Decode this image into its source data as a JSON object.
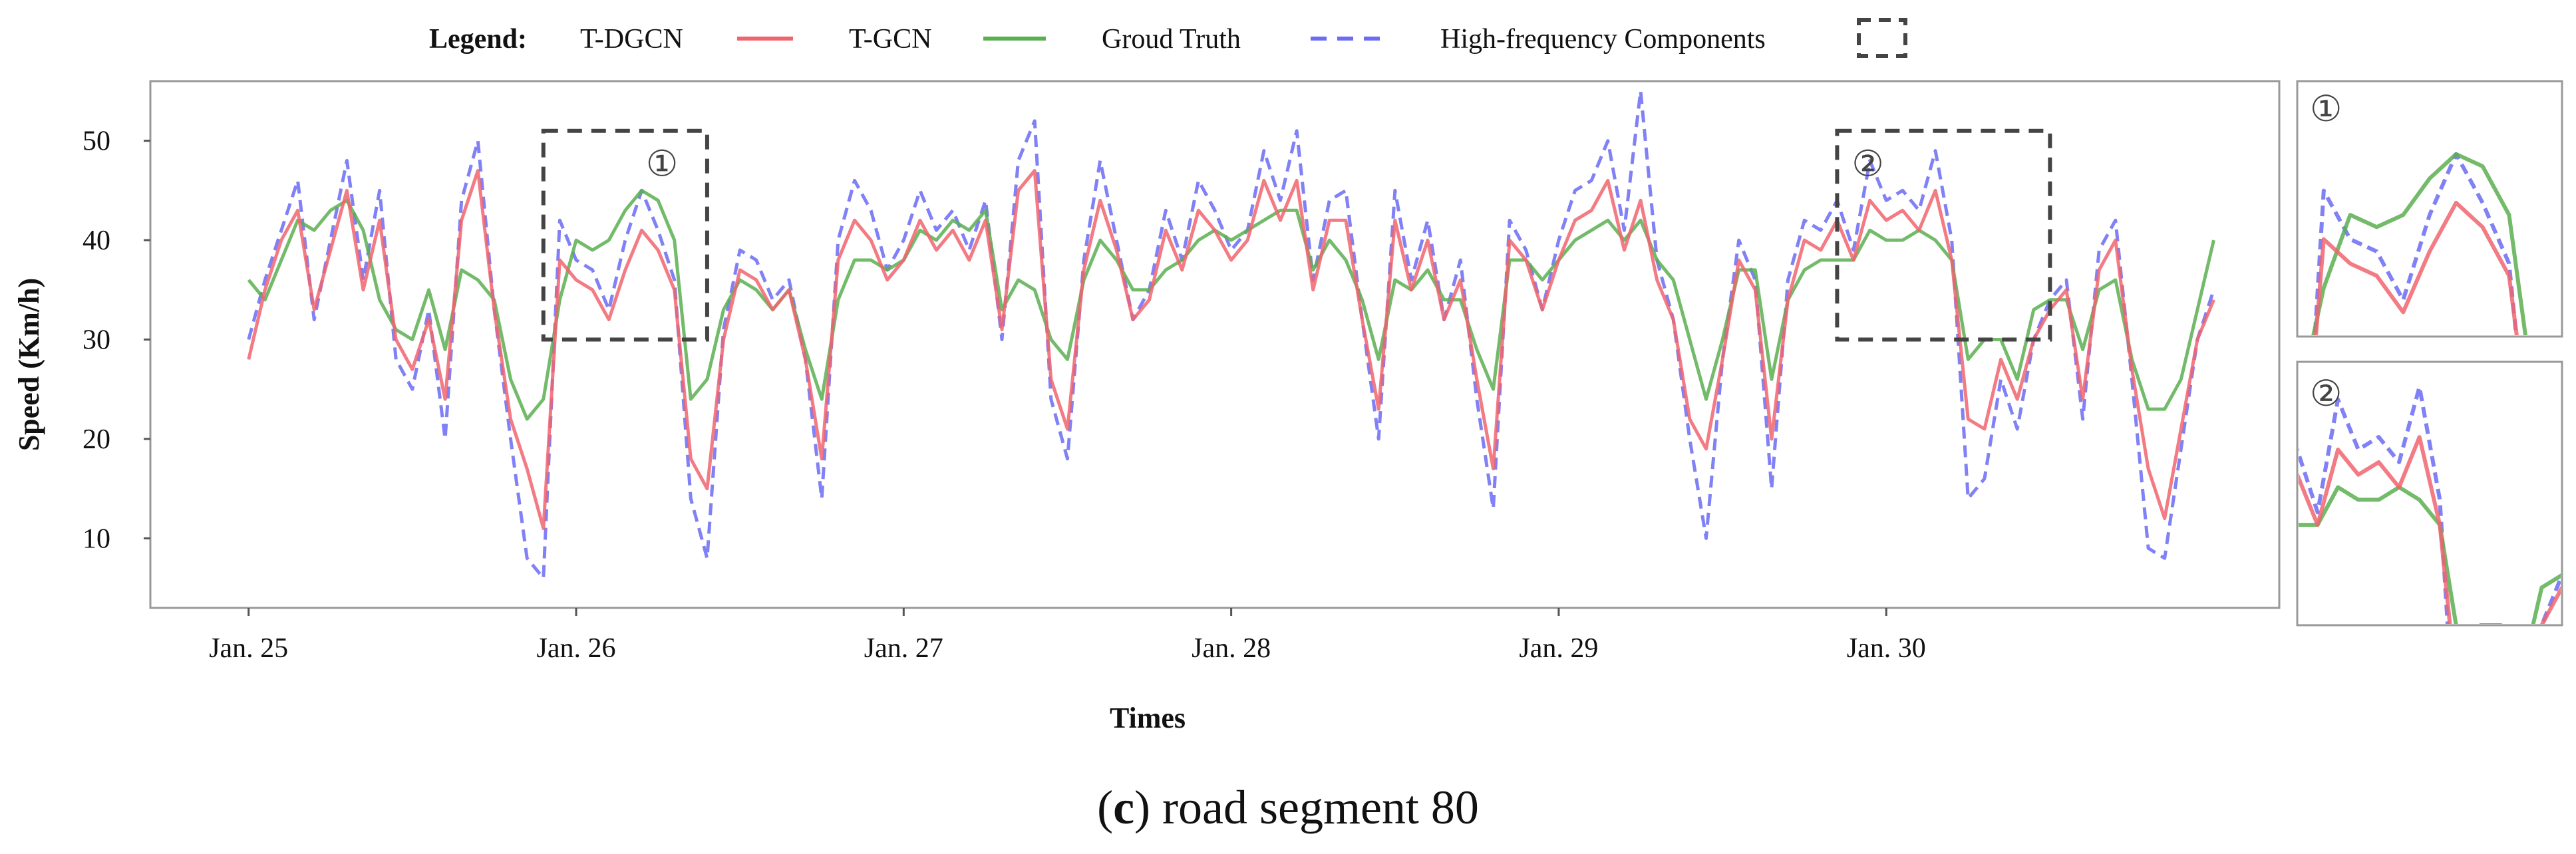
{
  "chart_data": {
    "type": "line",
    "title": "",
    "xlabel": "Times",
    "ylabel": "Speed (Km/h)",
    "ylim": [
      3,
      56
    ],
    "xlim": [
      24.7,
      31.2
    ],
    "yticks": [
      10,
      20,
      30,
      40,
      50
    ],
    "xticks": [
      {
        "value": 25,
        "label": "Jan. 25"
      },
      {
        "value": 26,
        "label": "Jan. 26"
      },
      {
        "value": 27,
        "label": "Jan. 27"
      },
      {
        "value": 28,
        "label": "Jan. 28"
      },
      {
        "value": 29,
        "label": "Jan. 29"
      },
      {
        "value": 30,
        "label": "Jan. 30"
      }
    ],
    "legend": {
      "title": "Legend:",
      "placement": "top-center",
      "entries": [
        {
          "label": "T-DGCN",
          "color": "#f0646e",
          "style": "solid"
        },
        {
          "label": "T-GCN",
          "color": "#5aaf50",
          "style": "solid"
        },
        {
          "label": "Groud Truth",
          "color": "#6b6bf5",
          "style": "dashed"
        },
        {
          "label": "High-frequency Components",
          "color": "#444444",
          "style": "box"
        }
      ]
    },
    "highlight_boxes": [
      {
        "label": "①",
        "x_range": [
          25.9,
          26.4
        ],
        "y_range": [
          30,
          51
        ]
      },
      {
        "label": "②",
        "x_range": [
          29.85,
          30.5
        ],
        "y_range": [
          30,
          51
        ]
      }
    ],
    "series": [
      {
        "name": "Groud Truth",
        "color": "#6b6bf5",
        "dash": true,
        "x": [
          25.0,
          25.05,
          25.1,
          25.15,
          25.2,
          25.25,
          25.3,
          25.35,
          25.4,
          25.45,
          25.5,
          25.55,
          25.6,
          25.65,
          25.7,
          25.75,
          25.8,
          25.85,
          25.9,
          25.95,
          26.0,
          26.05,
          26.1,
          26.15,
          26.2,
          26.25,
          26.3,
          26.35,
          26.4,
          26.45,
          26.5,
          26.55,
          26.6,
          26.65,
          26.7,
          26.75,
          26.8,
          26.85,
          26.9,
          26.95,
          27.0,
          27.05,
          27.1,
          27.15,
          27.2,
          27.25,
          27.3,
          27.35,
          27.4,
          27.45,
          27.5,
          27.55,
          27.6,
          27.65,
          27.7,
          27.75,
          27.8,
          27.85,
          27.9,
          27.95,
          28.0,
          28.05,
          28.1,
          28.15,
          28.2,
          28.25,
          28.3,
          28.35,
          28.4,
          28.45,
          28.5,
          28.55,
          28.6,
          28.65,
          28.7,
          28.75,
          28.8,
          28.85,
          28.9,
          28.95,
          29.0,
          29.05,
          29.1,
          29.15,
          29.2,
          29.25,
          29.3,
          29.35,
          29.4,
          29.45,
          29.5,
          29.55,
          29.6,
          29.65,
          29.7,
          29.75,
          29.8,
          29.85,
          29.9,
          29.95,
          30.0,
          30.05,
          30.1,
          30.15,
          30.2,
          30.25,
          30.3,
          30.35,
          30.4,
          30.45,
          30.5,
          30.55,
          30.6,
          30.65,
          30.7,
          30.75,
          30.8,
          30.85,
          30.9,
          30.95,
          31.0
        ],
        "values": [
          30,
          36,
          41,
          46,
          32,
          40,
          48,
          36,
          45,
          28,
          25,
          33,
          20,
          44,
          50,
          33,
          20,
          8,
          6,
          42,
          38,
          37,
          33,
          40,
          45,
          41,
          36,
          14,
          8,
          31,
          39,
          38,
          34,
          36,
          28,
          14,
          40,
          46,
          43,
          37,
          40,
          45,
          41,
          43,
          39,
          44,
          30,
          48,
          52,
          24,
          18,
          38,
          48,
          40,
          32,
          35,
          43,
          38,
          46,
          43,
          39,
          41,
          49,
          44,
          51,
          36,
          44,
          45,
          32,
          20,
          45,
          36,
          42,
          32,
          38,
          24,
          13,
          42,
          39,
          33,
          40,
          45,
          46,
          50,
          41,
          55,
          38,
          32,
          20,
          10,
          28,
          40,
          36,
          15,
          36,
          42,
          41,
          44,
          39,
          48,
          44,
          45,
          43,
          49,
          40,
          14,
          16,
          26,
          21,
          30,
          34,
          36,
          22,
          39,
          42,
          26,
          9,
          8,
          19,
          30,
          35
        ]
      },
      {
        "name": "T-DGCN",
        "color": "#f0646e",
        "dash": false,
        "x": [
          25.0,
          25.05,
          25.1,
          25.15,
          25.2,
          25.25,
          25.3,
          25.35,
          25.4,
          25.45,
          25.5,
          25.55,
          25.6,
          25.65,
          25.7,
          25.75,
          25.8,
          25.85,
          25.9,
          25.95,
          26.0,
          26.05,
          26.1,
          26.15,
          26.2,
          26.25,
          26.3,
          26.35,
          26.4,
          26.45,
          26.5,
          26.55,
          26.6,
          26.65,
          26.7,
          26.75,
          26.8,
          26.85,
          26.9,
          26.95,
          27.0,
          27.05,
          27.1,
          27.15,
          27.2,
          27.25,
          27.3,
          27.35,
          27.4,
          27.45,
          27.5,
          27.55,
          27.6,
          27.65,
          27.7,
          27.75,
          27.8,
          27.85,
          27.9,
          27.95,
          28.0,
          28.05,
          28.1,
          28.15,
          28.2,
          28.25,
          28.3,
          28.35,
          28.4,
          28.45,
          28.5,
          28.55,
          28.6,
          28.65,
          28.7,
          28.75,
          28.8,
          28.85,
          28.9,
          28.95,
          29.0,
          29.05,
          29.1,
          29.15,
          29.2,
          29.25,
          29.3,
          29.35,
          29.4,
          29.45,
          29.5,
          29.55,
          29.6,
          29.65,
          29.7,
          29.75,
          29.8,
          29.85,
          29.9,
          29.95,
          30.0,
          30.05,
          30.1,
          30.15,
          30.2,
          30.25,
          30.3,
          30.35,
          30.4,
          30.45,
          30.5,
          30.55,
          30.6,
          30.65,
          30.7,
          30.75,
          30.8,
          30.85,
          30.9,
          30.95,
          31.0
        ],
        "values": [
          28,
          35,
          40,
          43,
          33,
          39,
          45,
          35,
          42,
          30,
          27,
          32,
          24,
          42,
          47,
          33,
          22,
          17,
          11,
          38,
          36,
          35,
          32,
          37,
          41,
          39,
          35,
          18,
          15,
          30,
          37,
          36,
          33,
          35,
          28,
          18,
          38,
          42,
          40,
          36,
          38,
          42,
          39,
          41,
          38,
          42,
          31,
          45,
          47,
          26,
          21,
          37,
          44,
          39,
          32,
          34,
          41,
          37,
          43,
          41,
          38,
          40,
          46,
          42,
          46,
          35,
          42,
          42,
          32,
          23,
          42,
          35,
          40,
          32,
          36,
          26,
          17,
          40,
          38,
          33,
          38,
          42,
          43,
          46,
          39,
          44,
          36,
          32,
          22,
          19,
          28,
          38,
          35,
          20,
          34,
          40,
          39,
          42,
          38,
          44,
          42,
          43,
          41,
          45,
          38,
          22,
          21,
          28,
          24,
          30,
          33,
          35,
          24,
          37,
          40,
          27,
          17,
          12,
          21,
          30,
          34
        ]
      },
      {
        "name": "T-GCN",
        "color": "#5aaf50",
        "dash": false,
        "x": [
          25.0,
          25.05,
          25.1,
          25.15,
          25.2,
          25.25,
          25.3,
          25.35,
          25.4,
          25.45,
          25.5,
          25.55,
          25.6,
          25.65,
          25.7,
          25.75,
          25.8,
          25.85,
          25.9,
          25.95,
          26.0,
          26.05,
          26.1,
          26.15,
          26.2,
          26.25,
          26.3,
          26.35,
          26.4,
          26.45,
          26.5,
          26.55,
          26.6,
          26.65,
          26.7,
          26.75,
          26.8,
          26.85,
          26.9,
          26.95,
          27.0,
          27.05,
          27.1,
          27.15,
          27.2,
          27.25,
          27.3,
          27.35,
          27.4,
          27.45,
          27.5,
          27.55,
          27.6,
          27.65,
          27.7,
          27.75,
          27.8,
          27.85,
          27.9,
          27.95,
          28.0,
          28.05,
          28.1,
          28.15,
          28.2,
          28.25,
          28.3,
          28.35,
          28.4,
          28.45,
          28.5,
          28.55,
          28.6,
          28.65,
          28.7,
          28.75,
          28.8,
          28.85,
          28.9,
          28.95,
          29.0,
          29.05,
          29.1,
          29.15,
          29.2,
          29.25,
          29.3,
          29.35,
          29.4,
          29.45,
          29.5,
          29.55,
          29.6,
          29.65,
          29.7,
          29.75,
          29.8,
          29.85,
          29.9,
          29.95,
          30.0,
          30.05,
          30.1,
          30.15,
          30.2,
          30.25,
          30.3,
          30.35,
          30.4,
          30.45,
          30.5,
          30.55,
          30.6,
          30.65,
          30.7,
          30.75,
          30.8,
          30.85,
          30.9,
          30.95,
          31.0
        ],
        "values": [
          36,
          34,
          38,
          42,
          41,
          43,
          44,
          41,
          34,
          31,
          30,
          35,
          29,
          37,
          36,
          34,
          26,
          22,
          24,
          34,
          40,
          39,
          40,
          43,
          45,
          44,
          40,
          24,
          26,
          33,
          36,
          35,
          33,
          35,
          29,
          24,
          34,
          38,
          38,
          37,
          38,
          41,
          40,
          42,
          41,
          43,
          33,
          36,
          35,
          30,
          28,
          36,
          40,
          38,
          35,
          35,
          37,
          38,
          40,
          41,
          40,
          41,
          42,
          43,
          43,
          37,
          40,
          38,
          34,
          28,
          36,
          35,
          37,
          34,
          34,
          29,
          25,
          38,
          38,
          36,
          38,
          40,
          41,
          42,
          40,
          42,
          38,
          36,
          30,
          24,
          30,
          37,
          37,
          26,
          34,
          37,
          38,
          38,
          38,
          41,
          40,
          40,
          41,
          40,
          38,
          28,
          30,
          30,
          26,
          33,
          34,
          34,
          29,
          35,
          36,
          28,
          23,
          23,
          26,
          33,
          40
        ]
      }
    ],
    "insets": [
      {
        "label": "①",
        "x_range": [
          25.9,
          26.4
        ],
        "y_range": [
          30,
          51
        ]
      },
      {
        "label": "②",
        "x_range": [
          29.85,
          30.5
        ],
        "y_range": [
          30,
          51
        ]
      }
    ]
  },
  "caption": {
    "open": "(",
    "letter": "c",
    "close": ")",
    "text": " road segment 80"
  }
}
